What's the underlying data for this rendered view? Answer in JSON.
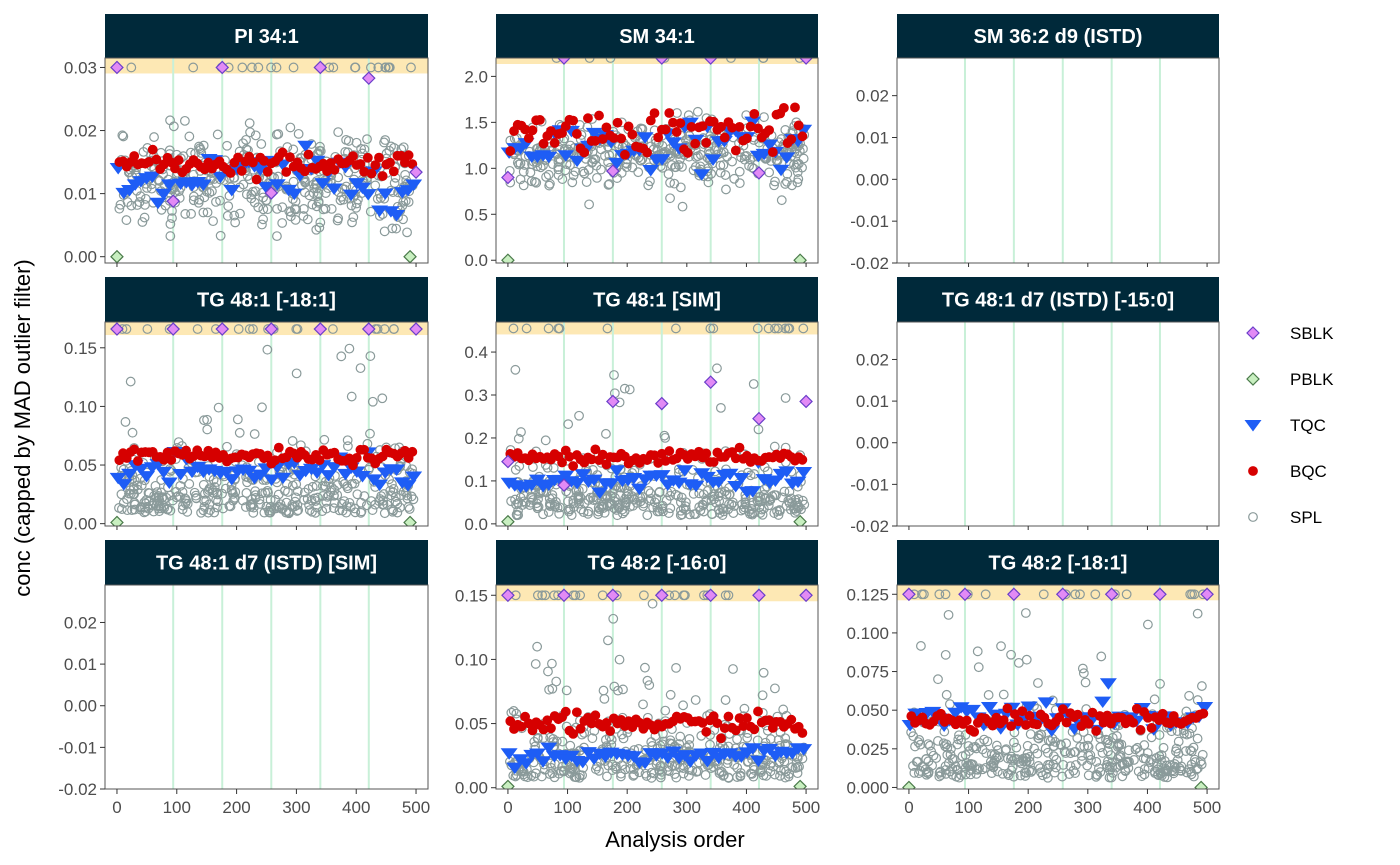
{
  "chart_data": {
    "type": "scatter",
    "layout": "faceted-grid",
    "title": "",
    "xlabel": "Analysis order",
    "ylabel": "conc (capped by MAD outlier filter)",
    "x_ticks": [
      "0",
      "100",
      "200",
      "300",
      "400",
      "500"
    ],
    "x_tick_values": [
      0,
      100,
      200,
      300,
      400,
      500
    ],
    "xlim": [
      -20,
      520
    ],
    "batch_boundaries": [
      94,
      176,
      258,
      340,
      421
    ],
    "colors": {
      "strip_bg": "#00293a",
      "strip_text": "#ffffff",
      "cap_band": "#fde8b4",
      "batch_line": "#c8f0d8",
      "panel_border": "#555555"
    },
    "legend": {
      "placement": "right",
      "entries": [
        {
          "label": "SBLK",
          "shape": "diamond",
          "fill": "#e28af5",
          "stroke": "#6a3fc9"
        },
        {
          "label": "PBLK",
          "shape": "diamond",
          "fill": "#c8efc0",
          "stroke": "#4a7a4a"
        },
        {
          "label": "TQC",
          "shape": "triangle-down",
          "fill": "#1e5df5",
          "stroke": "#1e5df5"
        },
        {
          "label": "BQC",
          "shape": "circle",
          "fill": "#d60000",
          "stroke": "#d60000"
        },
        {
          "label": "SPL",
          "shape": "open-circle",
          "fill": "none",
          "stroke": "#8a9a9a"
        }
      ]
    },
    "panels": [
      {
        "title": "PI 34:1",
        "ylim": [
          -0.001,
          0.0315
        ],
        "y_ticks": [
          "0.00",
          "0.01",
          "0.02",
          "0.03"
        ],
        "y_tick_values": [
          0,
          0.01,
          0.02,
          0.03
        ],
        "cap": 0.03,
        "empty": false,
        "spl": {
          "center": 0.012,
          "spread": 0.006,
          "skew": 0.0
        },
        "bqc": {
          "level": 0.0148,
          "noise": 0.0009
        },
        "tqc": {
          "level": 0.0122,
          "noise": 0.0022
        },
        "sblk": [
          [
            0,
            0.03
          ],
          [
            94,
            0.0088
          ],
          [
            176,
            0.03
          ],
          [
            258,
            0.0101
          ],
          [
            340,
            0.03
          ],
          [
            421,
            0.0283
          ],
          [
            500,
            0.0134
          ]
        ],
        "pblk": [
          [
            0,
            0.0
          ],
          [
            490,
            0.0
          ]
        ]
      },
      {
        "title": "SM 34:1",
        "ylim": [
          -0.03,
          2.2
        ],
        "y_ticks": [
          "0.0",
          "0.5",
          "1.0",
          "1.5",
          "2.0"
        ],
        "y_tick_values": [
          0,
          0.5,
          1.0,
          1.5,
          2.0
        ],
        "cap": 2.2,
        "empty": false,
        "spl": {
          "center": 1.15,
          "spread": 0.28,
          "skew": 0.0
        },
        "bqc": {
          "level": 1.4,
          "noise": 0.12
        },
        "tqc": {
          "level": 1.25,
          "noise": 0.12
        },
        "sblk": [
          [
            0,
            0.9
          ],
          [
            94,
            2.2
          ],
          [
            176,
            0.97
          ],
          [
            258,
            2.2
          ],
          [
            340,
            2.2
          ],
          [
            421,
            0.95
          ],
          [
            500,
            2.2
          ]
        ],
        "pblk": [
          [
            0,
            0.0
          ],
          [
            490,
            0.0
          ]
        ]
      },
      {
        "title": "SM 36:2 d9 (ISTD)",
        "ylim": [
          -0.02,
          0.029
        ],
        "y_ticks": [
          "-0.02",
          "-0.01",
          "0.00",
          "0.01",
          "0.02"
        ],
        "y_tick_values": [
          -0.02,
          -0.01,
          0,
          0.01,
          0.02
        ],
        "cap": null,
        "empty": true
      },
      {
        "title": "TG 48:1 [-18:1]",
        "ylim": [
          -0.002,
          0.172
        ],
        "y_ticks": [
          "0.00",
          "0.05",
          "0.10",
          "0.15"
        ],
        "y_tick_values": [
          0,
          0.05,
          0.1,
          0.15
        ],
        "cap": 0.166,
        "empty": false,
        "spl": {
          "center": 0.035,
          "spread": 0.04,
          "skew": 1.0
        },
        "bqc": {
          "level": 0.057,
          "noise": 0.003
        },
        "tqc": {
          "level": 0.044,
          "noise": 0.006
        },
        "sblk": [
          [
            0,
            0.166
          ],
          [
            94,
            0.166
          ],
          [
            176,
            0.166
          ],
          [
            258,
            0.166
          ],
          [
            340,
            0.166
          ],
          [
            421,
            0.166
          ],
          [
            500,
            0.166
          ]
        ],
        "pblk": [
          [
            0,
            0.001
          ],
          [
            490,
            0.001
          ]
        ]
      },
      {
        "title": "TG 48:1 [SIM]",
        "ylim": [
          -0.005,
          0.47
        ],
        "y_ticks": [
          "0.0",
          "0.1",
          "0.2",
          "0.3",
          "0.4"
        ],
        "y_tick_values": [
          0,
          0.1,
          0.2,
          0.3,
          0.4
        ],
        "cap": 0.455,
        "empty": false,
        "spl": {
          "center": 0.08,
          "spread": 0.1,
          "skew": 1.0
        },
        "bqc": {
          "level": 0.155,
          "noise": 0.008
        },
        "tqc": {
          "level": 0.1,
          "noise": 0.012
        },
        "sblk": [
          [
            0,
            0.145
          ],
          [
            94,
            0.09
          ],
          [
            176,
            0.285
          ],
          [
            258,
            0.28
          ],
          [
            340,
            0.33
          ],
          [
            421,
            0.245
          ],
          [
            500,
            0.285
          ]
        ],
        "pblk": [
          [
            0,
            0.005
          ],
          [
            490,
            0.005
          ]
        ]
      },
      {
        "title": "TG 48:1 d7 (ISTD) [-15:0]",
        "ylim": [
          -0.02,
          0.029
        ],
        "y_ticks": [
          "-0.02",
          "-0.01",
          "0.00",
          "0.01",
          "0.02"
        ],
        "y_tick_values": [
          -0.02,
          -0.01,
          0,
          0.01,
          0.02
        ],
        "cap": null,
        "empty": true
      },
      {
        "title": "TG 48:1 d7 (ISTD) [SIM]",
        "ylim": [
          -0.02,
          0.029
        ],
        "y_ticks": [
          "-0.02",
          "-0.01",
          "0.00",
          "0.01",
          "0.02"
        ],
        "y_tick_values": [
          -0.02,
          -0.01,
          0,
          0.01,
          0.02
        ],
        "cap": null,
        "empty": true
      },
      {
        "title": "TG 48:2 [-16:0]",
        "ylim": [
          -0.001,
          0.158
        ],
        "y_ticks": [
          "0.00",
          "0.05",
          "0.10",
          "0.15"
        ],
        "y_tick_values": [
          0,
          0.05,
          0.1,
          0.15
        ],
        "cap": 0.15,
        "empty": false,
        "spl": {
          "center": 0.03,
          "spread": 0.035,
          "skew": 1.0
        },
        "bqc": {
          "level": 0.05,
          "noise": 0.004
        },
        "tqc": {
          "level": 0.025,
          "noise": 0.003
        },
        "sblk": [
          [
            0,
            0.15
          ],
          [
            94,
            0.15
          ],
          [
            176,
            0.15
          ],
          [
            258,
            0.15
          ],
          [
            340,
            0.15
          ],
          [
            421,
            0.15
          ],
          [
            500,
            0.15
          ]
        ],
        "pblk": [
          [
            0,
            0.001
          ],
          [
            490,
            0.001
          ]
        ]
      },
      {
        "title": "TG 48:2 [-18:1]",
        "ylim": [
          -0.001,
          0.131
        ],
        "y_ticks": [
          "0.000",
          "0.025",
          "0.050",
          "0.075",
          "0.100",
          "0.125"
        ],
        "y_tick_values": [
          0,
          0.025,
          0.05,
          0.075,
          0.1,
          0.125
        ],
        "cap": 0.125,
        "empty": false,
        "spl": {
          "center": 0.025,
          "spread": 0.03,
          "skew": 1.0
        },
        "bqc": {
          "level": 0.044,
          "noise": 0.003
        },
        "tqc": {
          "level": 0.046,
          "noise": 0.005
        },
        "sblk": [
          [
            0,
            0.125
          ],
          [
            94,
            0.125
          ],
          [
            176,
            0.125
          ],
          [
            258,
            0.125
          ],
          [
            340,
            0.125
          ],
          [
            421,
            0.125
          ],
          [
            500,
            0.125
          ]
        ],
        "pblk": [
          [
            0,
            0.0
          ],
          [
            490,
            0.0
          ]
        ]
      }
    ]
  }
}
